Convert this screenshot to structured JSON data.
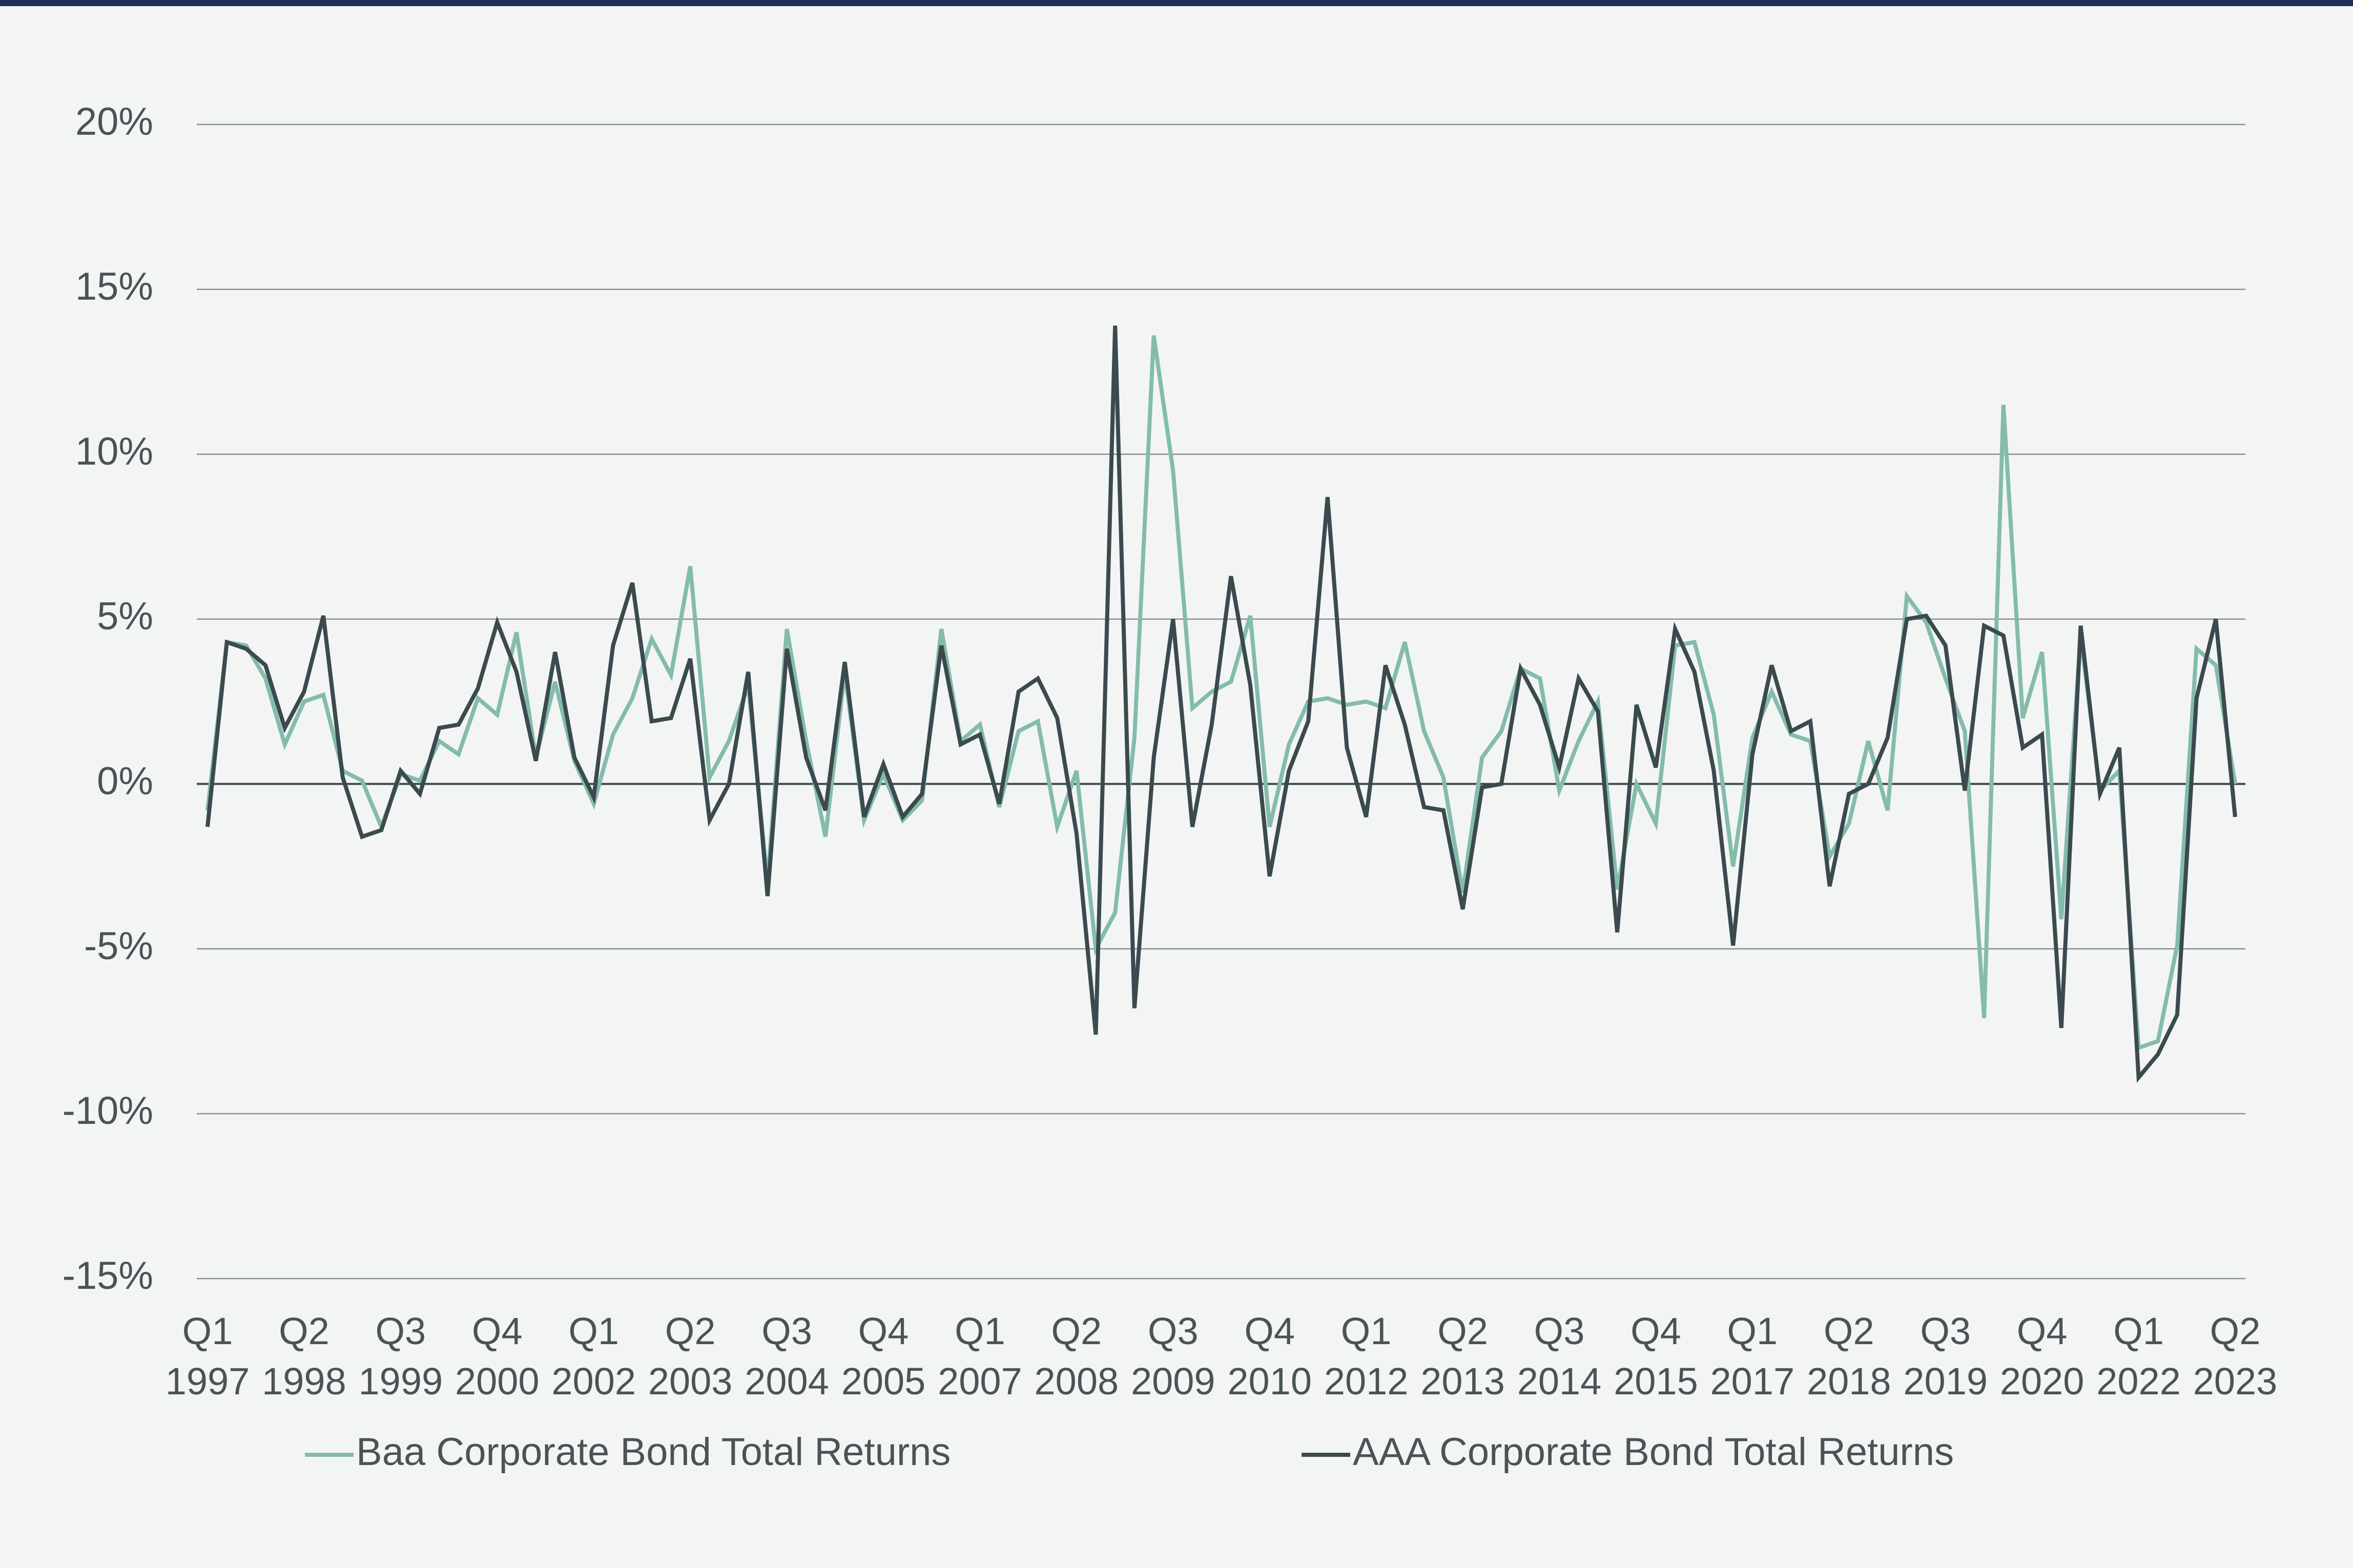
{
  "chart_data": {
    "type": "line",
    "categories": [
      "Q1 1997",
      null,
      null,
      null,
      null,
      "Q2 1998",
      null,
      null,
      null,
      null,
      "Q3 1999",
      null,
      null,
      null,
      null,
      "Q4 2000",
      null,
      null,
      null,
      null,
      "Q1 2002",
      null,
      null,
      null,
      null,
      "Q2 2003",
      null,
      null,
      null,
      null,
      "Q3 2004",
      null,
      null,
      null,
      null,
      "Q4 2005",
      null,
      null,
      null,
      null,
      "Q1 2007",
      null,
      null,
      null,
      null,
      "Q2 2008",
      null,
      null,
      null,
      null,
      "Q3 2009",
      null,
      null,
      null,
      null,
      "Q4 2010",
      null,
      null,
      null,
      null,
      "Q1 2012",
      null,
      null,
      null,
      null,
      "Q2 2013",
      null,
      null,
      null,
      null,
      "Q3 2014",
      null,
      null,
      null,
      null,
      "Q4 2015",
      null,
      null,
      null,
      null,
      "Q1 2017",
      null,
      null,
      null,
      null,
      "Q2 2018",
      null,
      null,
      null,
      null,
      "Q3 2019",
      null,
      null,
      null,
      null,
      "Q4 2020",
      null,
      null,
      null,
      null,
      "Q1 2022",
      null,
      null,
      null,
      null,
      "Q2 2023"
    ],
    "series": [
      {
        "name": "Baa Corporate Bond Total Returns",
        "color": "#84bcaa",
        "values": [
          -0.8,
          4.3,
          4.2,
          3.2,
          1.2,
          2.5,
          2.7,
          0.4,
          0.1,
          -1.3,
          0.3,
          0.1,
          1.3,
          0.9,
          2.6,
          2.1,
          4.6,
          0.8,
          3.1,
          0.7,
          -0.6,
          1.5,
          2.6,
          4.4,
          3.3,
          6.6,
          0.2,
          1.3,
          3.0,
          -3.0,
          4.7,
          1.3,
          -1.6,
          3.4,
          -1.1,
          0.3,
          -1.1,
          -0.5,
          4.7,
          1.3,
          1.8,
          -0.7,
          1.6,
          1.9,
          -1.3,
          0.4,
          -5.0,
          -3.9,
          1.4,
          13.6,
          9.5,
          2.3,
          2.8,
          3.1,
          5.1,
          -1.3,
          1.2,
          2.5,
          2.6,
          2.4,
          2.5,
          2.3,
          4.3,
          1.6,
          0.2,
          -3.3,
          0.8,
          1.6,
          3.5,
          3.2,
          -0.2,
          1.3,
          2.5,
          -3.2,
          0.0,
          -1.2,
          4.2,
          4.3,
          2.1,
          -2.5,
          1.4,
          2.8,
          1.5,
          1.3,
          -2.2,
          -1.2,
          1.3,
          -0.8,
          5.7,
          4.9,
          3.2,
          1.6,
          -7.1,
          11.5,
          2.0,
          4.0,
          -4.1,
          4.5,
          -0.2,
          0.4,
          -8.0,
          -7.8,
          -4.9,
          4.1,
          3.6,
          0.0
        ]
      },
      {
        "name": "AAA Corporate Bond Total Returns",
        "color": "#3b4a4e",
        "values": [
          -1.3,
          4.3,
          4.1,
          3.6,
          1.7,
          2.8,
          5.1,
          0.2,
          -1.6,
          -1.4,
          0.4,
          -0.3,
          1.7,
          1.8,
          2.9,
          4.9,
          3.4,
          0.7,
          4.0,
          0.8,
          -0.4,
          4.2,
          6.1,
          1.9,
          2.0,
          3.8,
          -1.1,
          0.0,
          3.4,
          -3.4,
          4.1,
          0.8,
          -0.8,
          3.7,
          -1.0,
          0.6,
          -1.0,
          -0.3,
          4.2,
          1.2,
          1.5,
          -0.6,
          2.8,
          3.2,
          2.0,
          -1.5,
          -7.6,
          13.9,
          -6.8,
          0.8,
          5.0,
          -1.3,
          1.8,
          6.3,
          3.0,
          -2.8,
          0.4,
          1.9,
          8.7,
          1.1,
          -1.0,
          3.6,
          1.8,
          -0.7,
          -0.8,
          -3.8,
          -0.1,
          0.0,
          3.5,
          2.4,
          0.5,
          3.2,
          2.2,
          -4.5,
          2.4,
          0.5,
          4.7,
          3.4,
          0.4,
          -4.9,
          0.9,
          3.6,
          1.6,
          1.9,
          -3.1,
          -0.3,
          0.0,
          1.4,
          5.0,
          5.1,
          4.2,
          -0.2,
          4.8,
          4.5,
          1.1,
          1.5,
          -7.4,
          4.8,
          -0.3,
          1.1,
          -8.9,
          -8.2,
          -7.0,
          2.6,
          5.0,
          -1.0
        ]
      }
    ],
    "ylim": [
      -15,
      20
    ],
    "yticks": [
      {
        "value": -15,
        "label": "-15%"
      },
      {
        "value": -10,
        "label": "-10%"
      },
      {
        "value": -5,
        "label": "-5%"
      },
      {
        "value": 0,
        "label": "0%"
      },
      {
        "value": 5,
        "label": "5%"
      },
      {
        "value": 10,
        "label": "10%"
      },
      {
        "value": 15,
        "label": "15%"
      },
      {
        "value": 20,
        "label": "20%"
      }
    ],
    "grid": true
  }
}
